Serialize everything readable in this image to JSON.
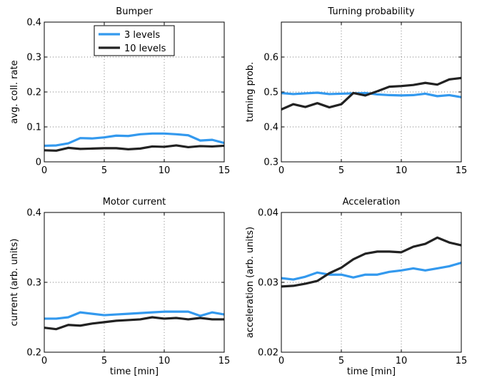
{
  "colors": {
    "series_3_levels": "#3399ee",
    "series_10_levels": "#222222"
  },
  "chart_data": [
    {
      "type": "line",
      "title": "Bumper",
      "xlabel": "",
      "ylabel": "avg. coll. rate",
      "xlim": [
        0,
        15
      ],
      "ylim": [
        0,
        0.4
      ],
      "xticks": [
        0,
        5,
        10,
        15
      ],
      "yticks": [
        0,
        0.1,
        0.2,
        0.3,
        0.4
      ],
      "xtick_labels": [
        "0",
        "5",
        "10",
        "15"
      ],
      "ytick_labels": [
        "0",
        "0.1",
        "0.2",
        "0.3",
        "0.4"
      ],
      "grid": true,
      "legend": {
        "position": "top-left",
        "entries": [
          "3 levels",
          "10 levels"
        ]
      },
      "x": [
        0,
        1,
        2,
        3,
        4,
        5,
        6,
        7,
        8,
        9,
        10,
        11,
        12,
        13,
        14,
        15
      ],
      "series": [
        {
          "name": "3 levels",
          "color": "#3399ee",
          "values": [
            0.046,
            0.047,
            0.053,
            0.068,
            0.067,
            0.07,
            0.075,
            0.074,
            0.079,
            0.081,
            0.081,
            0.079,
            0.076,
            0.061,
            0.063,
            0.054
          ]
        },
        {
          "name": "10 levels",
          "color": "#222222",
          "values": [
            0.033,
            0.032,
            0.04,
            0.037,
            0.038,
            0.039,
            0.039,
            0.036,
            0.038,
            0.044,
            0.043,
            0.047,
            0.042,
            0.045,
            0.044,
            0.046
          ]
        }
      ]
    },
    {
      "type": "line",
      "title": "Turning probability",
      "xlabel": "",
      "ylabel": "turning prob.",
      "xlim": [
        0,
        15
      ],
      "ylim": [
        0.3,
        0.7
      ],
      "xticks": [
        0,
        5,
        10,
        15
      ],
      "yticks": [
        0.3,
        0.4,
        0.5,
        0.6
      ],
      "xtick_labels": [
        "0",
        "5",
        "10",
        "15"
      ],
      "ytick_labels": [
        "0.3",
        "0.4",
        "0.5",
        "0.6"
      ],
      "grid": true,
      "x": [
        0,
        1,
        2,
        3,
        4,
        5,
        6,
        7,
        8,
        9,
        10,
        11,
        12,
        13,
        14,
        15
      ],
      "series": [
        {
          "color": "#3399ee",
          "values": [
            0.497,
            0.494,
            0.496,
            0.498,
            0.494,
            0.495,
            0.496,
            0.497,
            0.493,
            0.491,
            0.49,
            0.491,
            0.495,
            0.488,
            0.491,
            0.485
          ]
        },
        {
          "color": "#222222",
          "values": [
            0.45,
            0.465,
            0.457,
            0.468,
            0.456,
            0.465,
            0.497,
            0.49,
            0.502,
            0.515,
            0.517,
            0.52,
            0.526,
            0.521,
            0.536,
            0.54
          ]
        }
      ]
    },
    {
      "type": "line",
      "title": "Motor current",
      "xlabel": "time [min]",
      "ylabel": "current (arb. units)",
      "xlim": [
        0,
        15
      ],
      "ylim": [
        0.2,
        0.4
      ],
      "xticks": [
        0,
        5,
        10,
        15
      ],
      "yticks": [
        0.2,
        0.3,
        0.4
      ],
      "xtick_labels": [
        "0",
        "5",
        "10",
        "15"
      ],
      "ytick_labels": [
        "0.2",
        "0.3",
        "0.4"
      ],
      "grid": true,
      "x": [
        0,
        1,
        2,
        3,
        4,
        5,
        6,
        7,
        8,
        9,
        10,
        11,
        12,
        13,
        14,
        15
      ],
      "series": [
        {
          "color": "#3399ee",
          "values": [
            0.248,
            0.248,
            0.25,
            0.257,
            0.255,
            0.253,
            0.254,
            0.255,
            0.256,
            0.257,
            0.258,
            0.258,
            0.258,
            0.252,
            0.257,
            0.254
          ]
        },
        {
          "color": "#222222",
          "values": [
            0.235,
            0.233,
            0.239,
            0.238,
            0.241,
            0.243,
            0.245,
            0.246,
            0.247,
            0.25,
            0.248,
            0.249,
            0.247,
            0.249,
            0.247,
            0.247
          ]
        }
      ]
    },
    {
      "type": "line",
      "title": "Acceleration",
      "xlabel": "time [min]",
      "ylabel": "acceleration (arb. units)",
      "xlim": [
        0,
        15
      ],
      "ylim": [
        0.02,
        0.04
      ],
      "xticks": [
        0,
        5,
        10,
        15
      ],
      "yticks": [
        0.02,
        0.03,
        0.04
      ],
      "xtick_labels": [
        "0",
        "5",
        "10",
        "15"
      ],
      "ytick_labels": [
        "0.02",
        "0.03",
        "0.04"
      ],
      "grid": true,
      "x": [
        0,
        1,
        2,
        3,
        4,
        5,
        6,
        7,
        8,
        9,
        10,
        11,
        12,
        13,
        14,
        15
      ],
      "series": [
        {
          "color": "#3399ee",
          "values": [
            0.0306,
            0.0304,
            0.0308,
            0.0314,
            0.0311,
            0.0311,
            0.0307,
            0.0311,
            0.0311,
            0.0315,
            0.0317,
            0.032,
            0.0317,
            0.032,
            0.0323,
            0.0328
          ]
        },
        {
          "color": "#222222",
          "values": [
            0.0294,
            0.0295,
            0.0298,
            0.0302,
            0.0313,
            0.0321,
            0.0333,
            0.0341,
            0.0344,
            0.0344,
            0.0343,
            0.0351,
            0.0355,
            0.0364,
            0.0357,
            0.0353
          ]
        }
      ]
    }
  ]
}
